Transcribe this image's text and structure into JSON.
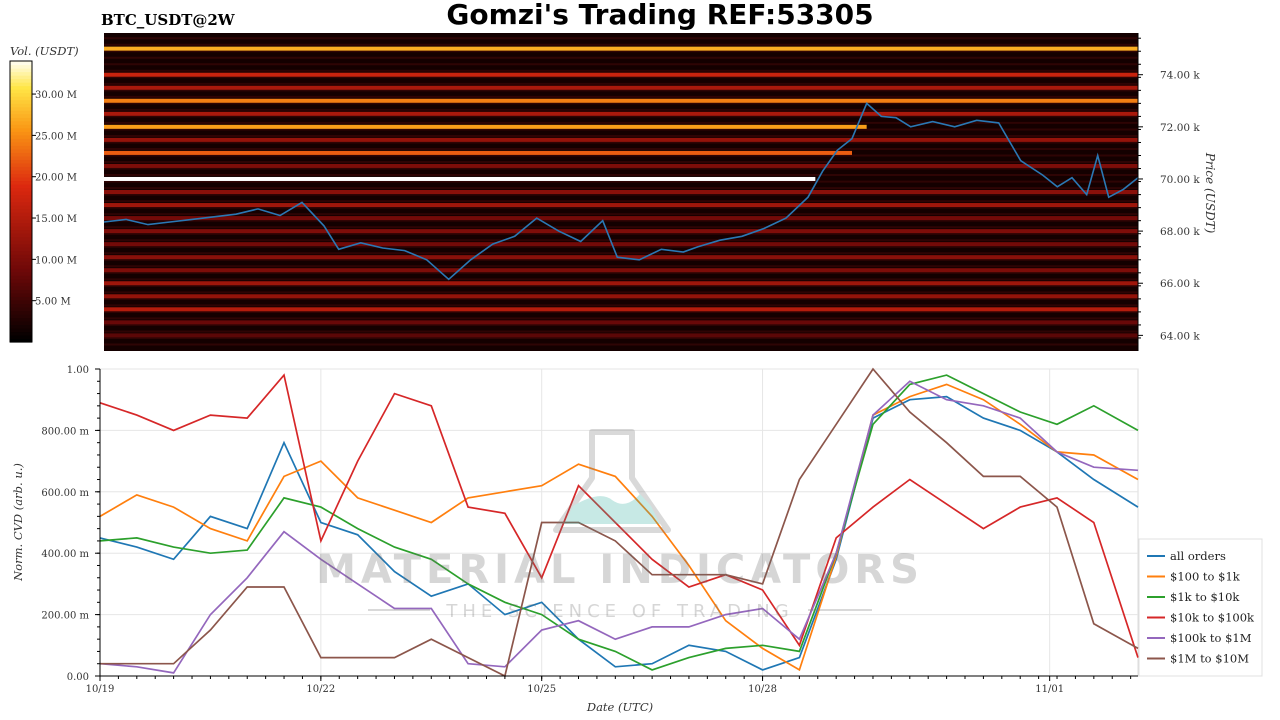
{
  "header": {
    "title": "Gomzi's Trading REF:53305",
    "symbol": "BTC_USDT@2W"
  },
  "watermark": {
    "brand": "MATERIAL INDICATORS",
    "tagline": "THE SCIENCE OF TRADING"
  },
  "colors": {
    "price_line": "#2a78b4",
    "all_orders": "#1f77b4",
    "s100_1k": "#ff7f0e",
    "s1k_10k": "#2ca02c",
    "s10k_100k": "#d62728",
    "s100k_1m": "#9467bd",
    "s1m_10m": "#8c564b"
  },
  "chart_data": [
    {
      "type": "heatmap",
      "colorbar": {
        "label": "Vol. (USDT)",
        "ticks": [
          "5.00 M",
          "10.00 M",
          "15.00 M",
          "20.00 M",
          "25.00 M",
          "30.00 M"
        ],
        "tick_values": [
          5,
          10,
          15,
          20,
          25,
          30
        ],
        "range": [
          0,
          34
        ]
      },
      "y_axis": {
        "label": "Price (USDT)",
        "ticks": [
          "64.00 k",
          "66.00 k",
          "68.00 k",
          "70.00 k",
          "72.00 k",
          "74.00 k"
        ],
        "tick_values": [
          64000,
          66000,
          68000,
          70000,
          72000,
          74000
        ],
        "range": [
          63400,
          75600
        ]
      },
      "x_range": [
        0,
        14.1
      ],
      "liquidity_bands": [
        {
          "price": 75000,
          "from": 0,
          "to": 14.1,
          "vol": 27
        },
        {
          "price": 74000,
          "from": 0,
          "to": 14.1,
          "vol": 17
        },
        {
          "price": 73500,
          "from": 0,
          "to": 14.1,
          "vol": 14
        },
        {
          "price": 73000,
          "from": 0,
          "to": 14.1,
          "vol": 24
        },
        {
          "price": 72500,
          "from": 0,
          "to": 14.1,
          "vol": 14
        },
        {
          "price": 72000,
          "from": 0,
          "to": 10.4,
          "vol": 26
        },
        {
          "price": 71500,
          "from": 0,
          "to": 14.1,
          "vol": 12
        },
        {
          "price": 71000,
          "from": 0,
          "to": 10.2,
          "vol": 22
        },
        {
          "price": 70500,
          "from": 0,
          "to": 14.1,
          "vol": 10
        },
        {
          "price": 70000,
          "from": 0,
          "to": 9.7,
          "vol": 34
        },
        {
          "price": 69500,
          "from": 0,
          "to": 14.1,
          "vol": 11
        },
        {
          "price": 69000,
          "from": 0,
          "to": 14.1,
          "vol": 13
        },
        {
          "price": 68500,
          "from": 0,
          "to": 14.1,
          "vol": 9
        },
        {
          "price": 68000,
          "from": 0,
          "to": 14.1,
          "vol": 10
        },
        {
          "price": 67500,
          "from": 0,
          "to": 14.1,
          "vol": 9
        },
        {
          "price": 67000,
          "from": 0,
          "to": 14.1,
          "vol": 11
        },
        {
          "price": 66500,
          "from": 0,
          "to": 14.1,
          "vol": 10
        },
        {
          "price": 66000,
          "from": 0,
          "to": 14.1,
          "vol": 13
        },
        {
          "price": 65500,
          "from": 0,
          "to": 14.1,
          "vol": 12
        },
        {
          "price": 65000,
          "from": 0,
          "to": 14.1,
          "vol": 15
        },
        {
          "price": 64500,
          "from": 0,
          "to": 14.1,
          "vol": 8
        },
        {
          "price": 64000,
          "from": 0,
          "to": 14.1,
          "vol": 7
        }
      ],
      "price_series": {
        "x": [
          0,
          0.3,
          0.6,
          0.9,
          1.2,
          1.5,
          1.8,
          2.1,
          2.4,
          2.7,
          3.0,
          3.2,
          3.5,
          3.8,
          4.1,
          4.4,
          4.7,
          5.0,
          5.3,
          5.6,
          5.9,
          6.2,
          6.5,
          6.8,
          7.0,
          7.3,
          7.6,
          7.9,
          8.1,
          8.4,
          8.7,
          9.0,
          9.3,
          9.6,
          9.8,
          10.0,
          10.2,
          10.4,
          10.6,
          10.8,
          11.0,
          11.3,
          11.6,
          11.9,
          12.2,
          12.5,
          12.8,
          13.0,
          13.2,
          13.4,
          13.55,
          13.7,
          13.9,
          14.1
        ],
        "y": [
          68350,
          68450,
          68250,
          68350,
          68450,
          68550,
          68650,
          68850,
          68600,
          69100,
          68200,
          67300,
          67550,
          67350,
          67250,
          66900,
          66150,
          66900,
          67500,
          67800,
          68500,
          68000,
          67600,
          68400,
          67000,
          66900,
          67300,
          67200,
          67400,
          67650,
          67800,
          68100,
          68500,
          69300,
          70300,
          71100,
          71550,
          72900,
          72400,
          72350,
          72000,
          72200,
          72000,
          72250,
          72150,
          70700,
          70150,
          69700,
          70050,
          69400,
          70900,
          69300,
          69600,
          70050
        ]
      }
    },
    {
      "type": "line",
      "x_label": "Date (UTC)",
      "y_label": "Norm. CVD (arb. u.)",
      "ylim": [
        0,
        1
      ],
      "y_ticks": [
        "0.00",
        "200.00 m",
        "400.00 m",
        "600.00 m",
        "800.00 m",
        "1.00"
      ],
      "y_tick_values": [
        0,
        0.2,
        0.4,
        0.6,
        0.8,
        1.0
      ],
      "x_ticks": [
        "10/19",
        "10/22",
        "10/25",
        "10/28",
        "11/01"
      ],
      "x_tick_values": [
        0,
        3,
        6,
        9,
        12.9
      ],
      "x_range": [
        0,
        14.1
      ],
      "x": [
        0,
        0.5,
        1.0,
        1.5,
        2.0,
        2.5,
        3.0,
        3.5,
        4.0,
        4.5,
        5.0,
        5.5,
        6.0,
        6.5,
        7.0,
        7.5,
        8.0,
        8.5,
        9.0,
        9.5,
        10.0,
        10.5,
        11.0,
        11.5,
        12.0,
        12.5,
        13.0,
        13.5,
        14.1
      ],
      "series": [
        {
          "name": "all orders",
          "color_key": "all_orders",
          "values": [
            0.45,
            0.42,
            0.38,
            0.52,
            0.48,
            0.76,
            0.5,
            0.46,
            0.34,
            0.26,
            0.3,
            0.2,
            0.24,
            0.12,
            0.03,
            0.04,
            0.1,
            0.08,
            0.02,
            0.06,
            0.38,
            0.84,
            0.9,
            0.91,
            0.84,
            0.8,
            0.73,
            0.64,
            0.55
          ]
        },
        {
          "name": "$100 to $1k",
          "color_key": "s100_1k",
          "values": [
            0.52,
            0.59,
            0.55,
            0.48,
            0.44,
            0.65,
            0.7,
            0.58,
            0.54,
            0.5,
            0.58,
            0.6,
            0.62,
            0.69,
            0.65,
            0.52,
            0.36,
            0.18,
            0.09,
            0.02,
            0.39,
            0.85,
            0.91,
            0.95,
            0.9,
            0.82,
            0.73,
            0.72,
            0.64
          ]
        },
        {
          "name": "$1k to $10k",
          "color_key": "s1k_10k",
          "values": [
            0.44,
            0.45,
            0.42,
            0.4,
            0.41,
            0.58,
            0.55,
            0.48,
            0.42,
            0.38,
            0.3,
            0.24,
            0.2,
            0.12,
            0.08,
            0.02,
            0.06,
            0.09,
            0.1,
            0.08,
            0.4,
            0.82,
            0.95,
            0.98,
            0.92,
            0.86,
            0.82,
            0.88,
            0.8
          ]
        },
        {
          "name": "$10k to $100k",
          "color_key": "s10k_100k",
          "values": [
            0.89,
            0.85,
            0.8,
            0.85,
            0.84,
            0.98,
            0.44,
            0.7,
            0.92,
            0.88,
            0.55,
            0.53,
            0.32,
            0.62,
            0.5,
            0.38,
            0.29,
            0.33,
            0.28,
            0.1,
            0.45,
            0.55,
            0.64,
            0.56,
            0.48,
            0.55,
            0.58,
            0.5,
            0.06
          ]
        },
        {
          "name": "$100k to $1M",
          "color_key": "s100k_1m",
          "values": [
            0.04,
            0.03,
            0.01,
            0.2,
            0.32,
            0.47,
            0.38,
            0.3,
            0.22,
            0.22,
            0.04,
            0.03,
            0.15,
            0.18,
            0.12,
            0.16,
            0.16,
            0.2,
            0.22,
            0.12,
            0.4,
            0.85,
            0.96,
            0.9,
            0.88,
            0.84,
            0.73,
            0.68,
            0.67
          ]
        },
        {
          "name": "$1M to $10M",
          "color_key": "s1m_10m",
          "values": [
            0.04,
            0.04,
            0.04,
            0.15,
            0.29,
            0.29,
            0.06,
            0.06,
            0.06,
            0.12,
            0.06,
            0.0,
            0.5,
            0.5,
            0.44,
            0.33,
            0.33,
            0.33,
            0.3,
            0.64,
            0.82,
            1.0,
            0.86,
            0.76,
            0.65,
            0.65,
            0.55,
            0.17,
            0.09
          ]
        }
      ]
    }
  ]
}
